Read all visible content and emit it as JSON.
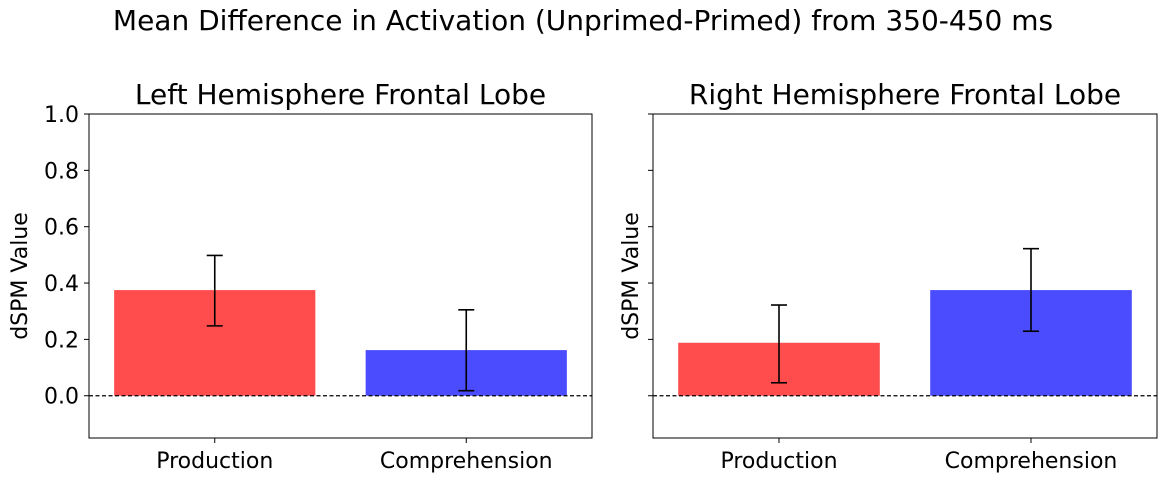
{
  "chart_data": {
    "suptitle": "Mean Difference in Activation (Unprimed-Primed) from 350-450 ms",
    "type": "bar",
    "shared_y": true,
    "ylim": [
      -0.15,
      1.0
    ],
    "yticks": [
      0.0,
      0.2,
      0.4,
      0.6,
      0.8,
      1.0
    ],
    "ytick_labels": [
      "0.0",
      "0.2",
      "0.4",
      "0.6",
      "0.8",
      "1.0"
    ],
    "reference_line": {
      "y": 0,
      "style": "dashed",
      "color": "#000000"
    },
    "grid": false,
    "panels": [
      {
        "title": "Left Hemisphere Frontal Lobe",
        "ylabel": "dSPM Value",
        "categories": [
          "Production",
          "Comprehension"
        ],
        "values": [
          0.375,
          0.162
        ],
        "error_low": [
          0.248,
          0.018
        ],
        "error_high": [
          0.498,
          0.305
        ],
        "colors": [
          "#ff4c4c",
          "#4c4cff"
        ],
        "show_ytick_labels": true
      },
      {
        "title": "Right Hemisphere Frontal Lobe",
        "ylabel": "dSPM Value",
        "categories": [
          "Production",
          "Comprehension"
        ],
        "values": [
          0.188,
          0.375
        ],
        "error_low": [
          0.046,
          0.229
        ],
        "error_high": [
          0.322,
          0.522
        ],
        "colors": [
          "#ff4c4c",
          "#4c4cff"
        ],
        "show_ytick_labels": false
      }
    ]
  }
}
